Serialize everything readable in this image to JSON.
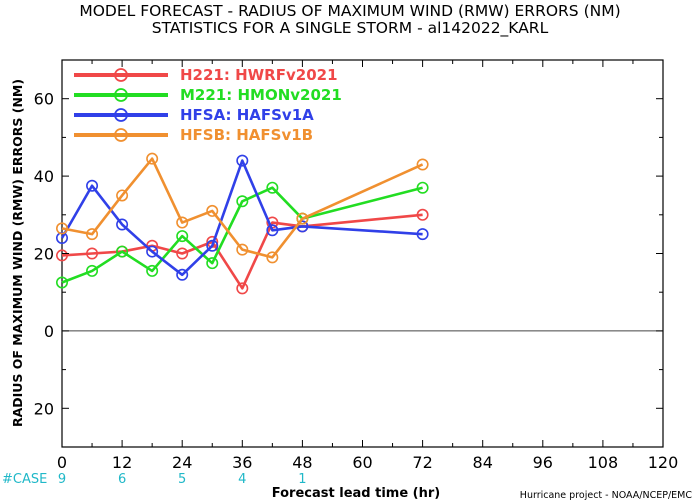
{
  "title_line1": "MODEL FORECAST - RADIUS OF MAXIMUM WIND (RMW) ERRORS (NM)",
  "title_line2": "STATISTICS FOR A SINGLE STORM - al142022_KARL",
  "credit": "Hurricane project - NOAA/NCEP/EMC",
  "chart_data": {
    "type": "line",
    "title": "MODEL FORECAST - RADIUS OF MAXIMUM WIND (RMW) ERRORS (NM)",
    "subtitle": "STATISTICS FOR A SINGLE STORM - al142022_KARL",
    "xlabel": "Forecast lead time (hr)",
    "ylabel": "RADIUS OF MAXIMUM WIND (RMW) ERRORS (NM)",
    "xlim": [
      0,
      120
    ],
    "ylim": [
      -30,
      70
    ],
    "xticks": [
      "0",
      "12",
      "24",
      "36",
      "48",
      "60",
      "72",
      "84",
      "96",
      "108",
      "120"
    ],
    "yticks": [
      "0",
      "20",
      "40",
      "60"
    ],
    "yticks_neg": [
      "20"
    ],
    "zero_line": true,
    "legend_position": "top-left",
    "case_label": "#CASE",
    "cases": [
      {
        "x": 0,
        "n": "9"
      },
      {
        "x": 12,
        "n": "6"
      },
      {
        "x": 24,
        "n": "5"
      },
      {
        "x": 36,
        "n": "4"
      },
      {
        "x": 48,
        "n": "1"
      }
    ],
    "series": [
      {
        "name": "H221: HWRFv2021",
        "color": "#f04848",
        "points": [
          [
            0,
            19.5
          ],
          [
            6,
            20
          ],
          [
            12,
            20.5
          ],
          [
            18,
            22
          ],
          [
            24,
            20
          ],
          [
            30,
            23
          ],
          [
            36,
            11
          ],
          [
            42,
            28
          ],
          [
            48,
            27
          ],
          [
            72,
            30
          ]
        ]
      },
      {
        "name": "M221: HMONv2021",
        "color": "#22dd22",
        "points": [
          [
            0,
            12.5
          ],
          [
            6,
            15.5
          ],
          [
            12,
            20.5
          ],
          [
            18,
            15.5
          ],
          [
            24,
            24.5
          ],
          [
            30,
            17.5
          ],
          [
            36,
            33.5
          ],
          [
            42,
            37
          ],
          [
            48,
            29
          ],
          [
            72,
            37
          ]
        ]
      },
      {
        "name": "HFSA: HAFSv1A",
        "color": "#3040e8",
        "points": [
          [
            0,
            24
          ],
          [
            6,
            37.5
          ],
          [
            12,
            27.5
          ],
          [
            18,
            20.5
          ],
          [
            24,
            14.5
          ],
          [
            30,
            22
          ],
          [
            36,
            44
          ],
          [
            42,
            26
          ],
          [
            48,
            27
          ],
          [
            72,
            25
          ]
        ]
      },
      {
        "name": "HFSB: HAFSv1B",
        "color": "#f09030",
        "points": [
          [
            0,
            26.5
          ],
          [
            6,
            25
          ],
          [
            12,
            35
          ],
          [
            18,
            44.5
          ],
          [
            24,
            28
          ],
          [
            30,
            31
          ],
          [
            36,
            21
          ],
          [
            42,
            19
          ],
          [
            48,
            29
          ],
          [
            72,
            43
          ]
        ]
      }
    ]
  }
}
